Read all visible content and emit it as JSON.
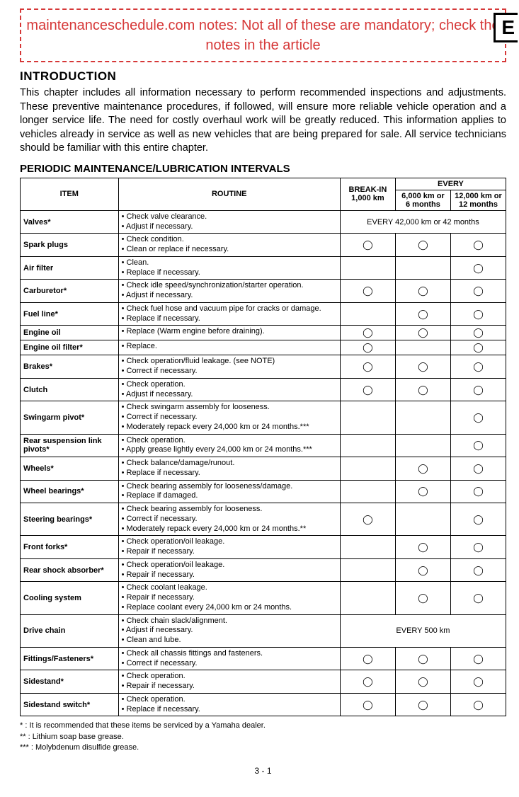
{
  "note": "maintenanceschedule.com notes: Not all of these are mandatory; check the notes in the article",
  "corner": "E",
  "intro_heading": "INTRODUCTION",
  "intro_text": "This chapter includes all information necessary to perform recommended inspections and adjustments. These preventive maintenance procedures, if followed, will ensure more reliable vehicle operation and a longer service life. The need for costly overhaul work will be greatly reduced. This information applies to vehicles already in service as well as new vehicles that are being prepared for sale. All service technicians should be familiar with this entire chapter.",
  "table_heading": "PERIODIC MAINTENANCE/LUBRICATION INTERVALS",
  "headers": {
    "item": "ITEM",
    "routine": "ROUTINE",
    "breakin": "BREAK-IN 1,000 km",
    "every": "EVERY",
    "col6k": "6,000 km or 6 months",
    "col12k": "12,000 km or 12 months"
  },
  "circle": "◯",
  "rows": [
    {
      "item": "Valves*",
      "routine": [
        "• Check valve clearance.",
        "• Adjust if necessary."
      ],
      "span": "EVERY 42,000 km or 42 months"
    },
    {
      "item": "Spark plugs",
      "routine": [
        "• Check condition.",
        "• Clean or replace if necessary."
      ],
      "m": [
        true,
        true,
        true
      ]
    },
    {
      "item": "Air filter",
      "routine": [
        "• Clean.",
        "• Replace if necessary."
      ],
      "m": [
        false,
        false,
        true
      ]
    },
    {
      "item": "Carburetor*",
      "routine": [
        "• Check idle speed/synchronization/starter operation.",
        "• Adjust if necessary."
      ],
      "m": [
        true,
        true,
        true
      ]
    },
    {
      "item": "Fuel line*",
      "routine": [
        "• Check fuel hose and vacuum pipe for cracks or damage.",
        "• Replace if necessary."
      ],
      "m": [
        false,
        true,
        true
      ]
    },
    {
      "item": "Engine oil",
      "routine": [
        "• Replace (Warm engine before draining)."
      ],
      "m": [
        true,
        true,
        true
      ]
    },
    {
      "item": "Engine oil filter*",
      "routine": [
        "• Replace."
      ],
      "m": [
        true,
        false,
        true
      ]
    },
    {
      "item": "Brakes*",
      "routine": [
        "• Check operation/fluid leakage. (see NOTE)",
        "• Correct if necessary."
      ],
      "m": [
        true,
        true,
        true
      ]
    },
    {
      "item": "Clutch",
      "routine": [
        "• Check operation.",
        "• Adjust if necessary."
      ],
      "m": [
        true,
        true,
        true
      ]
    },
    {
      "item": "Swingarm pivot*",
      "routine": [
        "• Check swingarm assembly for looseness.",
        "• Correct if necessary.",
        "• Moderately repack every 24,000 km or 24 months.***"
      ],
      "m": [
        false,
        false,
        true
      ]
    },
    {
      "item": "Rear suspension link pivots*",
      "routine": [
        "• Check operation.",
        "• Apply grease lightly every 24,000 km or 24 months.***"
      ],
      "m": [
        false,
        false,
        true
      ]
    },
    {
      "item": "Wheels*",
      "routine": [
        "• Check balance/damage/runout.",
        "• Replace if necessary."
      ],
      "m": [
        false,
        true,
        true
      ]
    },
    {
      "item": "Wheel bearings*",
      "routine": [
        "• Check bearing assembly for looseness/damage.",
        "• Replace if damaged."
      ],
      "m": [
        false,
        true,
        true
      ]
    },
    {
      "item": "Steering bearings*",
      "routine": [
        "• Check bearing assembly for looseness.",
        "• Correct if necessary.",
        "• Moderately repack every 24,000 km or 24 months.**"
      ],
      "m": [
        true,
        false,
        true
      ]
    },
    {
      "item": "Front forks*",
      "routine": [
        "• Check operation/oil leakage.",
        "• Repair if necessary."
      ],
      "m": [
        false,
        true,
        true
      ]
    },
    {
      "item": "Rear shock absorber*",
      "routine": [
        "• Check operation/oil leakage.",
        "• Repair if necessary."
      ],
      "m": [
        false,
        true,
        true
      ]
    },
    {
      "item": "Cooling system",
      "routine": [
        "• Check coolant leakage.",
        "• Repair if necessary.",
        "• Replace coolant every 24,000 km or 24 months."
      ],
      "m": [
        false,
        true,
        true
      ]
    },
    {
      "item": "Drive chain",
      "routine": [
        "• Check chain slack/alignment.",
        "• Adjust if necessary.",
        "• Clean and lube."
      ],
      "span": "EVERY 500 km"
    },
    {
      "item": "Fittings/Fasteners*",
      "routine": [
        "• Check all chassis fittings and fasteners.",
        "• Correct if necessary."
      ],
      "m": [
        true,
        true,
        true
      ]
    },
    {
      "item": "Sidestand*",
      "routine": [
        "• Check operation.",
        "• Repair if necessary."
      ],
      "m": [
        true,
        true,
        true
      ]
    },
    {
      "item": "Sidestand switch*",
      "routine": [
        "• Check operation.",
        "• Replace if necessary."
      ],
      "m": [
        true,
        true,
        true
      ]
    }
  ],
  "footnotes": [
    "*   : It is recommended that these items be serviced by a Yamaha dealer.",
    "**  : Lithium soap base grease.",
    "*** : Molybdenum disulfide grease."
  ],
  "page": "3 - 1"
}
